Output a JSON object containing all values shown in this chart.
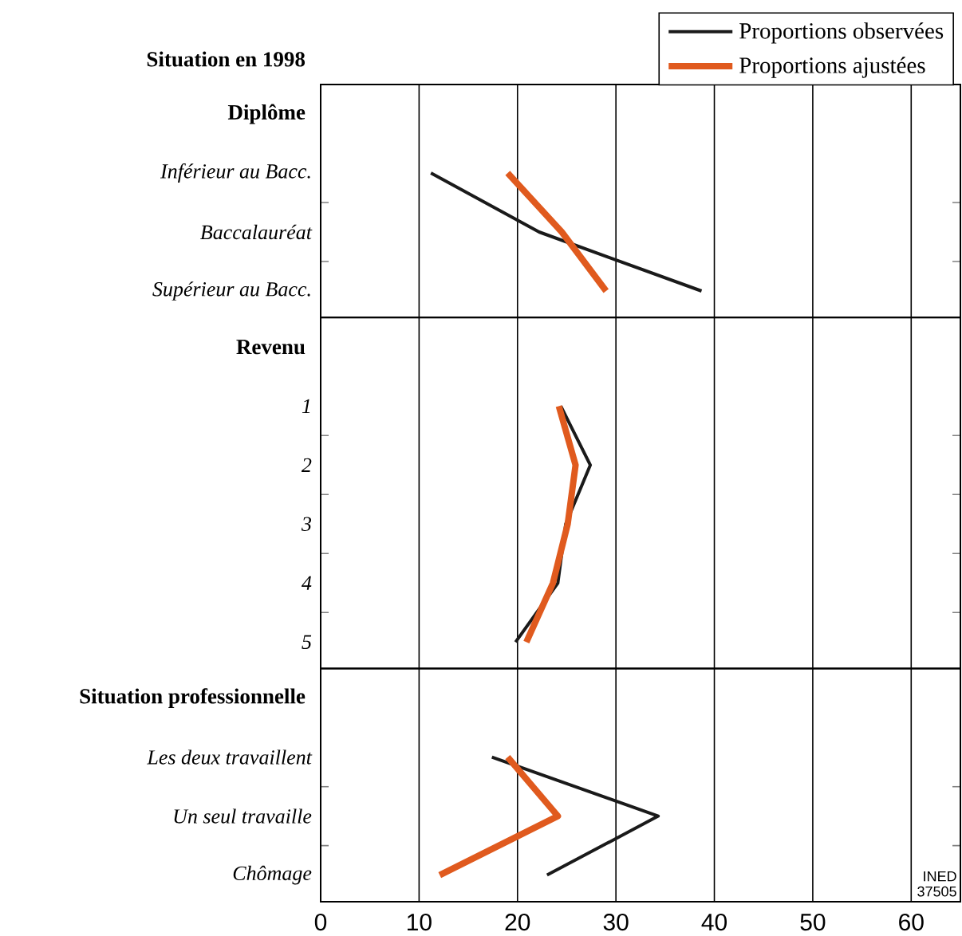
{
  "chart_data": [
    {
      "type": "line",
      "orientation": "horizontal",
      "title": "Situation en 1998",
      "subtitle": "Diplôme",
      "categories": [
        "Inférieur au Bacc.",
        "Baccalauréat",
        "Supérieur au Bacc."
      ],
      "series": [
        {
          "name": "Proportions observées",
          "color": "#1a1a1a",
          "values": [
            11.2,
            22.2,
            38.7
          ]
        },
        {
          "name": "Proportions ajustées",
          "color": "#e05a1e",
          "values": [
            19.0,
            24.5,
            29.0
          ]
        }
      ],
      "xlim": [
        0,
        65
      ],
      "xticks": [
        0,
        10,
        20,
        30,
        40,
        50,
        60
      ],
      "grid": "x",
      "legend": "top right",
      "tick_labels": "y"
    },
    {
      "type": "line",
      "orientation": "horizontal",
      "title": "Revenu",
      "categories": [
        "1",
        "2",
        "3",
        "4",
        "5"
      ],
      "series": [
        {
          "color": "#1a1a1a",
          "values": [
            24.4,
            27.4,
            24.9,
            24.1,
            19.8
          ]
        },
        {
          "color": "#e05a1e",
          "values": [
            24.2,
            25.9,
            25.1,
            23.6,
            20.9
          ]
        }
      ],
      "xlim": [
        0,
        65
      ],
      "xticks": [
        0,
        10,
        20,
        30,
        40,
        50,
        60
      ],
      "grid": "x",
      "tick_labels": "y"
    },
    {
      "type": "line",
      "orientation": "horizontal",
      "title": "Situation professionnelle",
      "categories": [
        "Les deux travaillent",
        "Un seul travaille",
        "Chômage"
      ],
      "series": [
        {
          "color": "#1a1a1a",
          "values": [
            17.4,
            34.3,
            23.0
          ]
        },
        {
          "color": "#e05a1e",
          "values": [
            19.0,
            24.1,
            12.1
          ]
        }
      ],
      "xlim": [
        0,
        65
      ],
      "xticks": [
        0,
        10,
        20,
        30,
        40,
        50,
        60
      ],
      "grid": "x",
      "annotations": [
        "INED 37505"
      ]
    }
  ]
}
